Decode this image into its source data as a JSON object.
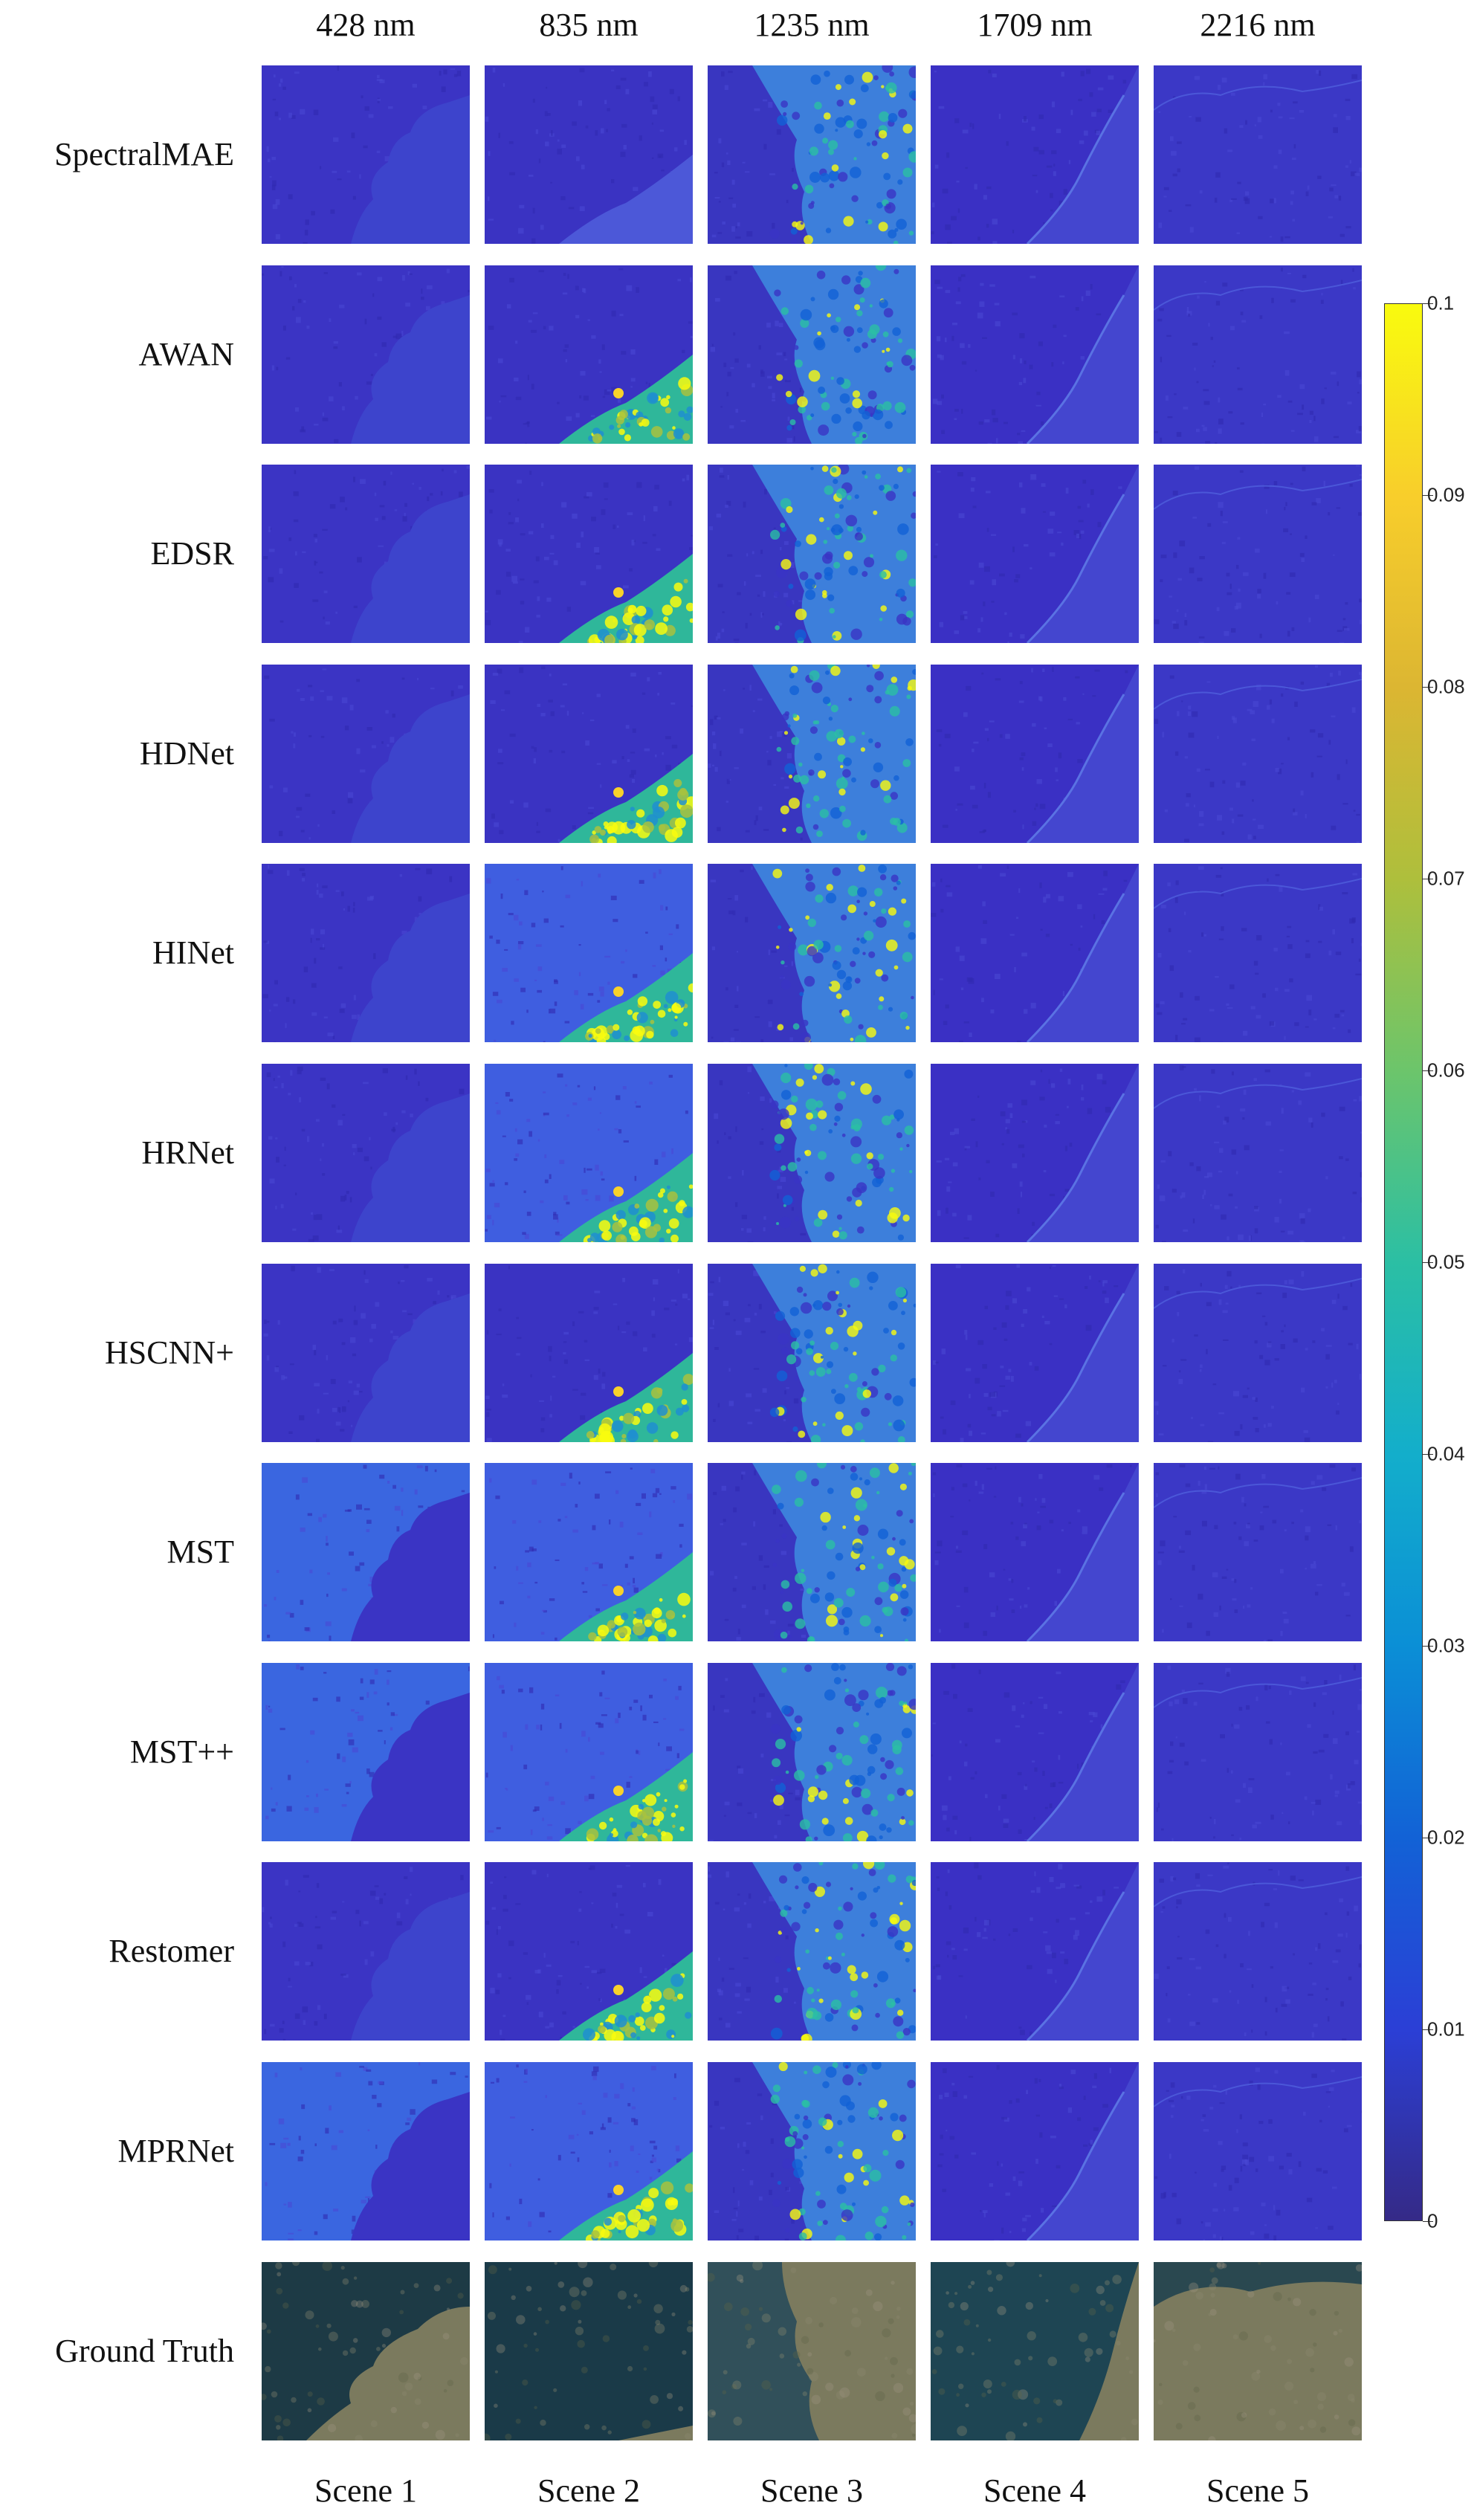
{
  "wavelengths": [
    "428 nm",
    "835 nm",
    "1235 nm",
    "1709 nm",
    "2216 nm"
  ],
  "methods": [
    "SpectralMAE",
    "AWAN",
    "EDSR",
    "HDNet",
    "HINet",
    "HRNet",
    "HSCNN+",
    "MST",
    "MST++",
    "Restomer",
    "MPRNet"
  ],
  "ground_truth_label": "Ground Truth",
  "scenes": [
    "Scene 1",
    "Scene 2",
    "Scene 3",
    "Scene 4",
    "Scene 5"
  ],
  "colorbar": {
    "min": 0,
    "max": 0.1,
    "ticks": [
      "0",
      "0.01",
      "0.02",
      "0.03",
      "0.04",
      "0.05",
      "0.06",
      "0.07",
      "0.08",
      "0.09",
      "0.1"
    ],
    "colormap": [
      "#352a87",
      "#2b3fd6",
      "#1262d6",
      "#0b8fd6",
      "#13aecb",
      "#2bbfa4",
      "#6cc56b",
      "#aebf3c",
      "#dcb632",
      "#f8ce2b",
      "#f9fb0e"
    ]
  },
  "colors": {
    "low_error": "#3a2fbf",
    "high_error": "#f9fb0e"
  }
}
